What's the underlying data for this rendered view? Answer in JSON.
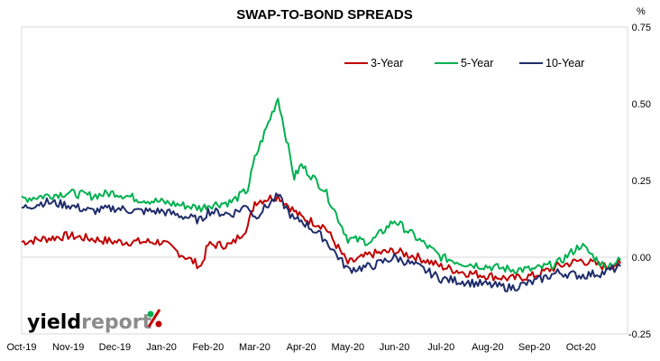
{
  "chart_data": {
    "type": "line",
    "title": "SWAP-TO-BOND SPREADS",
    "unit_label": "%",
    "ylim": [
      -0.25,
      0.75
    ],
    "yticks": [
      {
        "value": 0.75,
        "label": "0.75"
      },
      {
        "value": 0.5,
        "label": "0.50"
      },
      {
        "value": 0.25,
        "label": "0.25"
      },
      {
        "value": 0.0,
        "label": "0.00"
      },
      {
        "value": -0.25,
        "label": "-0.25"
      }
    ],
    "x_tick_labels": [
      "Oct-19",
      "Nov-19",
      "Dec-19",
      "Jan-20",
      "Feb-20",
      "Mar-20",
      "Apr-20",
      "May-20",
      "Jun-20",
      "Jul-20",
      "Aug-20",
      "Sep-20",
      "Oct-20"
    ],
    "legend_position": "top-right",
    "series": [
      {
        "name": "3-Year",
        "color": "#c00000",
        "points": [
          [
            "Oct-19",
            0.05
          ],
          [
            "Oct-19 mid",
            0.06
          ],
          [
            "Nov-19",
            0.07
          ],
          [
            "Nov-19 mid",
            0.06
          ],
          [
            "Dec-19",
            0.05
          ],
          [
            "Dec-19 mid",
            0.05
          ],
          [
            "Jan-20",
            0.05
          ],
          [
            "Jan-20 late",
            -0.03
          ],
          [
            "Feb-20",
            0.04
          ],
          [
            "Feb-20 mid",
            0.04
          ],
          [
            "Feb-20 late",
            0.1
          ],
          [
            "Mar-20",
            0.18
          ],
          [
            "Mar-20 mid",
            0.2
          ],
          [
            "Mar-20 late",
            0.15
          ],
          [
            "Apr-20",
            0.13
          ],
          [
            "Apr-20 mid",
            0.1
          ],
          [
            "May-20",
            -0.02
          ],
          [
            "May-20 mid",
            0.01
          ],
          [
            "Jun-20",
            0.02
          ],
          [
            "Jun-20 mid",
            0.0
          ],
          [
            "Jul-20",
            -0.03
          ],
          [
            "Jul-20 mid",
            -0.05
          ],
          [
            "Aug-20",
            -0.06
          ],
          [
            "Aug-20 mid",
            -0.07
          ],
          [
            "Sep-20",
            -0.06
          ],
          [
            "Sep-20 mid",
            -0.03
          ],
          [
            "Oct-20",
            -0.01
          ],
          [
            "Oct-20 mid",
            -0.03
          ],
          [
            "Oct-20 late",
            -0.02
          ]
        ]
      },
      {
        "name": "5-Year",
        "color": "#00b050",
        "points": [
          [
            "Oct-19",
            0.19
          ],
          [
            "Oct-19 mid",
            0.2
          ],
          [
            "Nov-19",
            0.21
          ],
          [
            "Nov-19 mid",
            0.2
          ],
          [
            "Dec-19",
            0.21
          ],
          [
            "Dec-19 mid",
            0.19
          ],
          [
            "Jan-20",
            0.18
          ],
          [
            "Jan-20 late",
            0.16
          ],
          [
            "Feb-20",
            0.17
          ],
          [
            "Feb-20 mid",
            0.18
          ],
          [
            "Feb-20 late",
            0.22
          ],
          [
            "Mar-20",
            0.32
          ],
          [
            "Mar-20 mid",
            0.52
          ],
          [
            "Mar-20 late",
            0.26
          ],
          [
            "Apr-20",
            0.3
          ],
          [
            "Apr-20 mid",
            0.22
          ],
          [
            "May-20",
            0.06
          ],
          [
            "May-20 mid",
            0.05
          ],
          [
            "Jun-20",
            0.12
          ],
          [
            "Jun-20 mid",
            0.06
          ],
          [
            "Jul-20",
            0.0
          ],
          [
            "Jul-20 mid",
            -0.02
          ],
          [
            "Aug-20",
            -0.03
          ],
          [
            "Aug-20 mid",
            -0.04
          ],
          [
            "Sep-20",
            -0.04
          ],
          [
            "Sep-20 mid",
            -0.02
          ],
          [
            "Oct-20",
            0.04
          ],
          [
            "Oct-20 mid",
            -0.03
          ],
          [
            "Oct-20 late",
            -0.01
          ]
        ]
      },
      {
        "name": "10-Year",
        "color": "#1f2d6b",
        "points": [
          [
            "Oct-19",
            0.16
          ],
          [
            "Oct-19 mid",
            0.18
          ],
          [
            "Nov-19",
            0.17
          ],
          [
            "Nov-19 mid",
            0.15
          ],
          [
            "Dec-19",
            0.16
          ],
          [
            "Dec-19 mid",
            0.15
          ],
          [
            "Jan-20",
            0.15
          ],
          [
            "Jan-20 late",
            0.12
          ],
          [
            "Feb-20",
            0.15
          ],
          [
            "Feb-20 mid",
            0.14
          ],
          [
            "Feb-20 late",
            0.17
          ],
          [
            "Mar-20",
            0.13
          ],
          [
            "Mar-20 mid",
            0.2
          ],
          [
            "Mar-20 late",
            0.12
          ],
          [
            "Apr-20",
            0.12
          ],
          [
            "Apr-20 mid",
            0.06
          ],
          [
            "May-20",
            -0.04
          ],
          [
            "May-20 mid",
            -0.03
          ],
          [
            "Jun-20",
            0.0
          ],
          [
            "Jun-20 mid",
            -0.03
          ],
          [
            "Jul-20",
            -0.07
          ],
          [
            "Jul-20 mid",
            -0.08
          ],
          [
            "Aug-20",
            -0.09
          ],
          [
            "Aug-20 mid",
            -0.1
          ],
          [
            "Sep-20",
            -0.08
          ],
          [
            "Sep-20 mid",
            -0.05
          ],
          [
            "Oct-20",
            -0.06
          ],
          [
            "Oct-20 mid",
            -0.05
          ],
          [
            "Oct-20 late",
            -0.03
          ]
        ]
      }
    ]
  },
  "branding": {
    "part1": "yield",
    "part2": "report",
    "part3": "%",
    "colors": {
      "yield": "#000000",
      "report": "#8c8c8c",
      "pct_green": "#00b050",
      "pct_red": "#c00000"
    }
  }
}
